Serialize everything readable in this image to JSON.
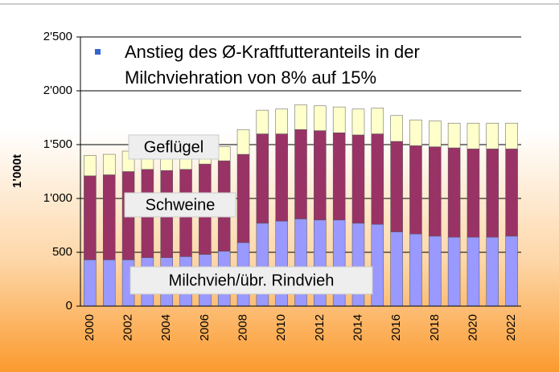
{
  "chart_data": {
    "type": "stacked_bar",
    "annotation": {
      "lines": [
        "Anstieg des Ø-Kraftfutteranteils in der",
        "Milchviehration von 8% auf 15%"
      ],
      "color": "#3366cc"
    },
    "y_label": "1'000t",
    "categories": [
      "2000",
      null,
      "2002",
      null,
      "2004",
      null,
      "2006",
      null,
      "2008",
      null,
      "2010",
      null,
      "2012",
      null,
      "2014",
      null,
      "2016",
      null,
      "2018",
      null,
      "2020",
      null,
      "2022"
    ],
    "series": [
      {
        "name": "Milchvieh/übr. Rindvieh",
        "color": "#9999ff",
        "values": [
          430,
          430,
          430,
          450,
          450,
          460,
          480,
          510,
          590,
          770,
          790,
          810,
          800,
          800,
          770,
          760,
          690,
          670,
          650,
          640,
          640,
          640,
          650
        ]
      },
      {
        "name": "Schweine",
        "color": "#993366",
        "values": [
          780,
          790,
          820,
          820,
          810,
          810,
          840,
          840,
          820,
          830,
          810,
          830,
          830,
          810,
          820,
          840,
          840,
          820,
          830,
          830,
          820,
          820,
          810
        ]
      },
      {
        "name": "Geflügel",
        "color": "#ffffcc",
        "values": [
          190,
          190,
          190,
          180,
          190,
          180,
          150,
          130,
          230,
          220,
          230,
          230,
          230,
          240,
          240,
          240,
          240,
          240,
          240,
          230,
          240,
          240,
          240
        ]
      }
    ],
    "ylim": [
      0,
      2500
    ],
    "yticks": [
      0,
      {
        "value": 500,
        "label": "500"
      },
      {
        "value": 1000,
        "label": "1'000"
      },
      {
        "value": 1500,
        "label": "1'500"
      },
      {
        "value": 2000,
        "label": "2'000"
      },
      {
        "value": 2500,
        "label": "2'500"
      }
    ],
    "grid": true
  }
}
